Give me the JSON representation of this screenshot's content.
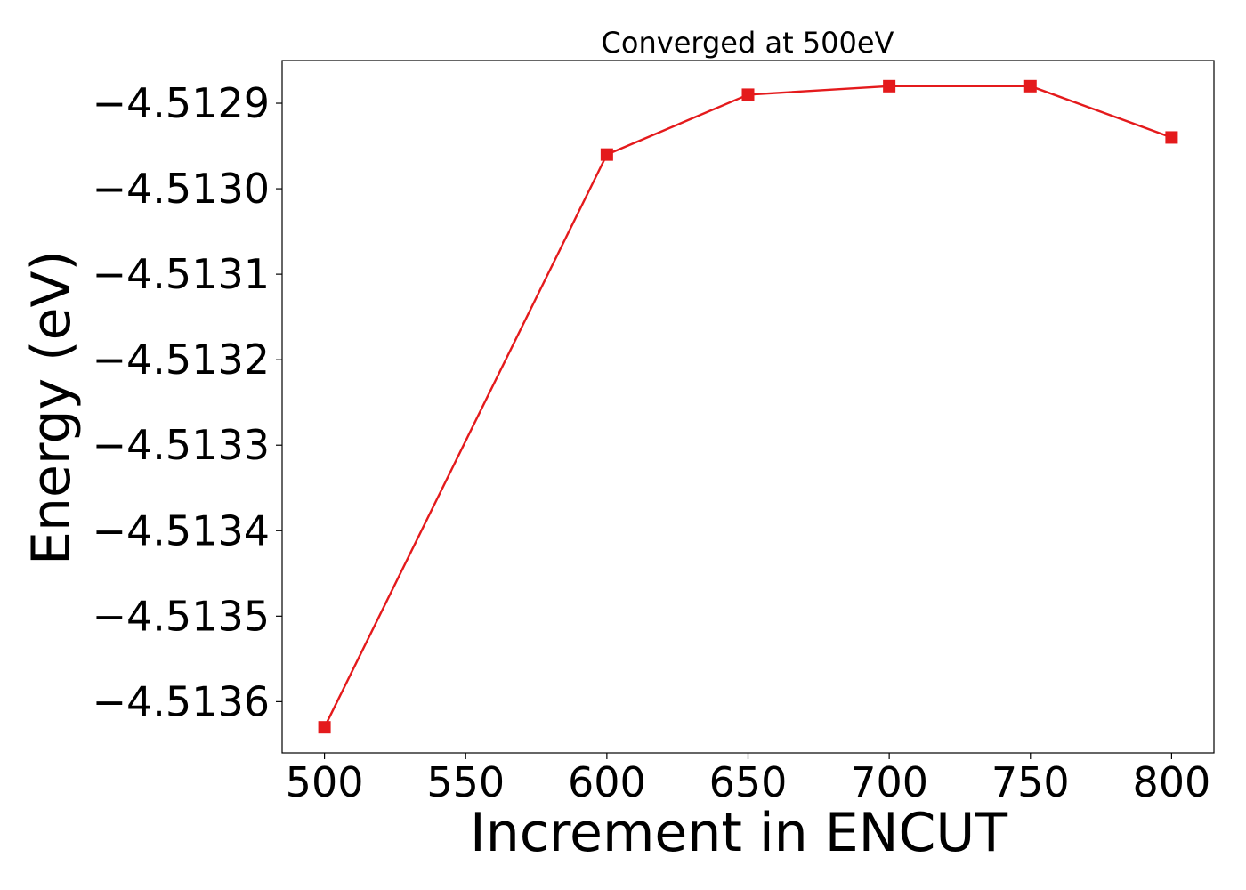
{
  "chart_data": {
    "type": "line",
    "title": "Converged at 500eV",
    "xlabel": "Increment in ENCUT",
    "ylabel": "Energy (eV)",
    "x": [
      500,
      600,
      650,
      700,
      750,
      800
    ],
    "series": [
      {
        "values": [
          -4.51363,
          -4.51296,
          -4.51289,
          -4.51288,
          -4.51288,
          -4.51294
        ],
        "color": "#e41a1c",
        "marker": "square"
      }
    ],
    "xlim": [
      485,
      815
    ],
    "ylim": [
      -4.51366,
      -4.51285
    ],
    "xticks": [
      500,
      550,
      600,
      650,
      700,
      750,
      800
    ],
    "xtick_labels": [
      "500",
      "550",
      "600",
      "650",
      "700",
      "750",
      "800"
    ],
    "yticks": [
      -4.5136,
      -4.5135,
      -4.5134,
      -4.5133,
      -4.5132,
      -4.5131,
      -4.513,
      -4.5129
    ],
    "ytick_labels": [
      "−4.5136",
      "−4.5135",
      "−4.5134",
      "−4.5133",
      "−4.5132",
      "−4.5131",
      "−4.5130",
      "−4.5129"
    ],
    "grid": false,
    "legend": false
  }
}
